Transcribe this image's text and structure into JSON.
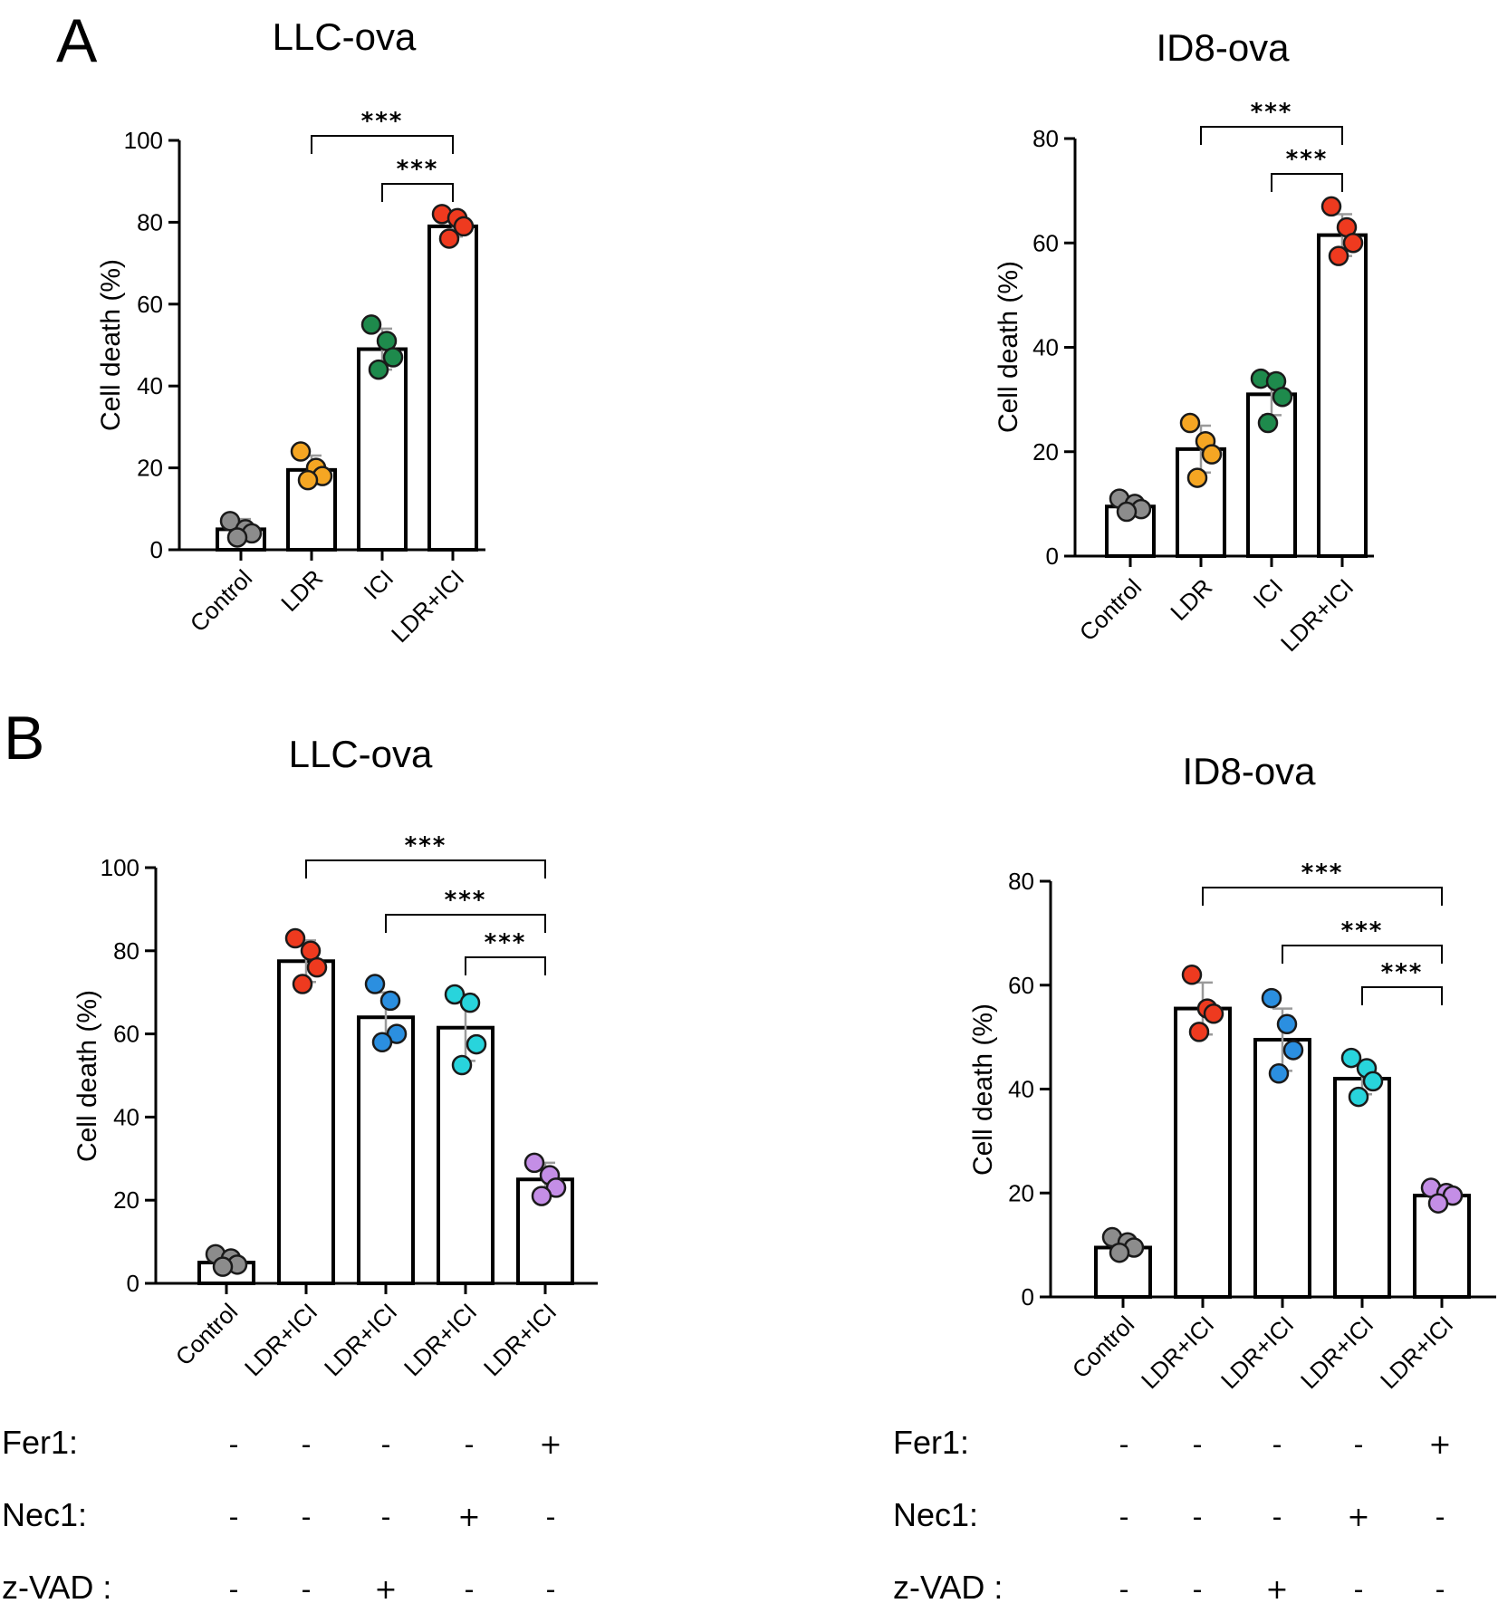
{
  "panels": [
    {
      "id": "panel-a",
      "letter": "A"
    },
    {
      "id": "panel-b",
      "letter": "B"
    }
  ],
  "colors": {
    "control": "#8c8c8c",
    "ldr": "#f5a623",
    "ici": "#1e8a4c",
    "ldr_ici": "#ee3a1f",
    "z_vad": "#2b8fe0",
    "nec1": "#28d4dc",
    "fer1": "#c48ee6"
  },
  "chart_data": [
    {
      "type": "bar",
      "panel": "A",
      "title": "LLC-ova",
      "ylabel": "Cell death (%)",
      "xlabel": "",
      "ylim": [
        0,
        100
      ],
      "yticks": [
        0,
        20,
        40,
        60,
        80,
        100
      ],
      "categories": [
        "Control",
        "LDR",
        "ICI",
        "LDR+ICI"
      ],
      "values": [
        5,
        19.5,
        49,
        79
      ],
      "sd": [
        2.5,
        3.5,
        5,
        2.5
      ],
      "points": [
        [
          7,
          5,
          4,
          3
        ],
        [
          24,
          20,
          18,
          17
        ],
        [
          55,
          51,
          47,
          44
        ],
        [
          82,
          81,
          79,
          76
        ]
      ],
      "point_colors": [
        "control",
        "ldr",
        "ici",
        "ldr_ici"
      ],
      "significance": [
        {
          "from": 1,
          "to": 3,
          "label": "***"
        },
        {
          "from": 2,
          "to": 3,
          "label": "***"
        }
      ]
    },
    {
      "type": "bar",
      "panel": "A",
      "title": "ID8-ova",
      "ylabel": "Cell death (%)",
      "xlabel": "",
      "ylim": [
        0,
        80
      ],
      "yticks": [
        0,
        20,
        40,
        60,
        80
      ],
      "categories": [
        "Control",
        "LDR",
        "ICI",
        "LDR+ICI"
      ],
      "values": [
        9.5,
        20.5,
        31,
        61.5
      ],
      "sd": [
        1.5,
        4.5,
        4,
        4
      ],
      "points": [
        [
          11,
          10,
          9,
          8.5
        ],
        [
          25.5,
          22,
          19.5,
          15
        ],
        [
          34,
          33.5,
          30.5,
          25.5
        ],
        [
          67,
          63,
          60,
          57.5
        ]
      ],
      "point_colors": [
        "control",
        "ldr",
        "ici",
        "ldr_ici"
      ],
      "significance": [
        {
          "from": 1,
          "to": 3,
          "label": "***"
        },
        {
          "from": 2,
          "to": 3,
          "label": "***"
        }
      ]
    },
    {
      "type": "bar",
      "panel": "B",
      "title": "LLC-ova",
      "ylabel": "Cell death (%)",
      "xlabel": "",
      "ylim": [
        0,
        100
      ],
      "yticks": [
        0,
        20,
        40,
        60,
        80,
        100
      ],
      "categories": [
        "Control",
        "LDR+ICI",
        "LDR+ICI",
        "LDR+ICI",
        "LDR+ICI"
      ],
      "values": [
        5,
        77.5,
        64,
        61.5,
        25
      ],
      "sd": [
        2,
        5,
        6,
        8,
        4
      ],
      "points": [
        [
          7,
          6,
          4.5,
          4
        ],
        [
          83,
          80,
          76,
          72
        ],
        [
          72,
          68,
          60,
          58
        ],
        [
          69.5,
          67.5,
          57.5,
          52.5
        ],
        [
          29,
          26,
          23,
          21
        ]
      ],
      "point_colors": [
        "control",
        "ldr_ici",
        "z_vad",
        "nec1",
        "fer1"
      ],
      "significance": [
        {
          "from": 1,
          "to": 4,
          "label": "***"
        },
        {
          "from": 2,
          "to": 4,
          "label": "***"
        },
        {
          "from": 3,
          "to": 4,
          "label": "***"
        }
      ],
      "treatments": [
        {
          "name": "Fer1:",
          "values": [
            "-",
            "-",
            "-",
            "-",
            "+"
          ]
        },
        {
          "name": "Nec1:",
          "values": [
            "-",
            "-",
            "-",
            "+",
            "-"
          ]
        },
        {
          "name": "z-VAD :",
          "values": [
            "-",
            "-",
            "+",
            "-",
            "-"
          ]
        }
      ]
    },
    {
      "type": "bar",
      "panel": "B",
      "title": "ID8-ova",
      "ylabel": "Cell death (%)",
      "xlabel": "",
      "ylim": [
        0,
        80
      ],
      "yticks": [
        0,
        20,
        40,
        60,
        80
      ],
      "categories": [
        "Control",
        "LDR+ICI",
        "LDR+ICI",
        "LDR+ICI",
        "LDR+ICI"
      ],
      "values": [
        9.5,
        55.5,
        49.5,
        42,
        19.5
      ],
      "sd": [
        1.5,
        5,
        6,
        3,
        1
      ],
      "points": [
        [
          11.5,
          10.5,
          9.5,
          8.5
        ],
        [
          62,
          55.5,
          54.5,
          51
        ],
        [
          57.5,
          52.5,
          47.5,
          43
        ],
        [
          46,
          44,
          41.5,
          38.5
        ],
        [
          21,
          20,
          19.5,
          18
        ]
      ],
      "point_colors": [
        "control",
        "ldr_ici",
        "z_vad",
        "nec1",
        "fer1"
      ],
      "significance": [
        {
          "from": 1,
          "to": 4,
          "label": "***"
        },
        {
          "from": 2,
          "to": 4,
          "label": "***"
        },
        {
          "from": 3,
          "to": 4,
          "label": "***"
        }
      ],
      "treatments": [
        {
          "name": "Fer1:",
          "values": [
            "-",
            "-",
            "-",
            "-",
            "+"
          ]
        },
        {
          "name": "Nec1:",
          "values": [
            "-",
            "-",
            "-",
            "+",
            "-"
          ]
        },
        {
          "name": "z-VAD :",
          "values": [
            "-",
            "-",
            "+",
            "-",
            "-"
          ]
        }
      ]
    }
  ]
}
